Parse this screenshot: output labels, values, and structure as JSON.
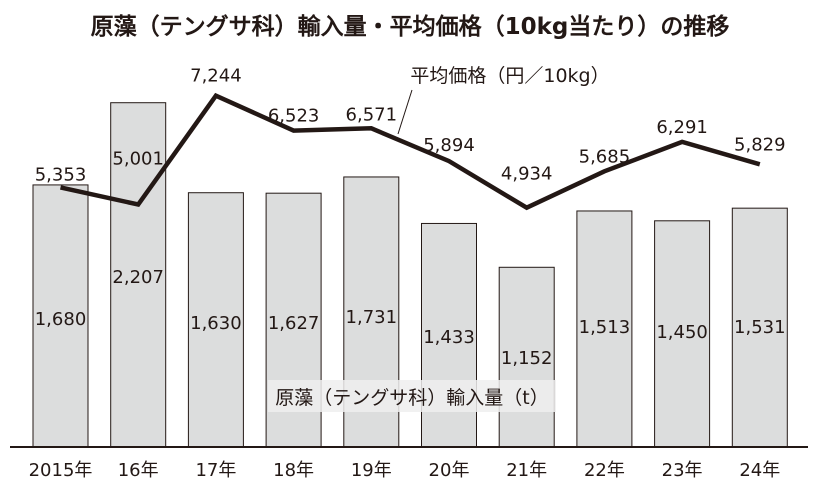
{
  "chart_data": {
    "type": "bar+line",
    "title": "原藻（テングサ科）輸入量・平均価格（10kg当たり）の推移",
    "categories": [
      "2015年",
      "16年",
      "17年",
      "18年",
      "19年",
      "20年",
      "21年",
      "22年",
      "23年",
      "24年"
    ],
    "series": [
      {
        "name": "原藻（テングサ科）輸入量（t）",
        "type": "bar",
        "values": [
          1680,
          2207,
          1630,
          1627,
          1731,
          1433,
          1152,
          1513,
          1450,
          1531
        ],
        "labels": [
          "1,680",
          "2,207",
          "1,630",
          "1,627",
          "1,731",
          "1,433",
          "1,152",
          "1,513",
          "1,450",
          "1,531"
        ]
      },
      {
        "name": "平均価格（円／10kg）",
        "type": "line",
        "values": [
          5353,
          5001,
          7244,
          6523,
          6571,
          5894,
          4934,
          5685,
          6291,
          5829
        ],
        "labels": [
          "5,353",
          "5,001",
          "7,244",
          "6,523",
          "6,571",
          "5,894",
          "4,934",
          "5,685",
          "6,291",
          "5,829"
        ]
      }
    ],
    "colors": {
      "bar_fill": "#dcdddd",
      "bar_stroke": "#231815",
      "line": "#231815"
    },
    "grid": false
  }
}
